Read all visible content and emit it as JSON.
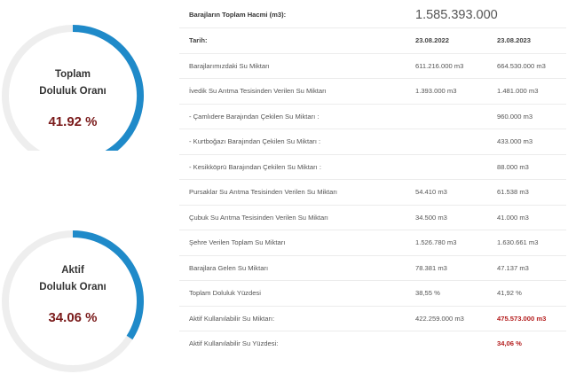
{
  "gauges": [
    {
      "label_line1": "Toplam",
      "label_line2": "Doluluk Oranı",
      "value_text": "41.92 %",
      "fraction": 0.4192
    },
    {
      "label_line1": "Aktif",
      "label_line2": "Doluluk Oranı",
      "value_text": "34.06 %",
      "fraction": 0.3406
    }
  ],
  "colors": {
    "gauge_fill": "#1f8ac9",
    "gauge_track": "#eeeeee",
    "value_text": "#7a1a1a",
    "highlight": "#b31b1b"
  },
  "table": {
    "total_volume_label": "Barajların Toplam Hacmi (m3):",
    "total_volume_value": "1.585.393.000",
    "date_label": "Tarih:",
    "date_1": "23.08.2022",
    "date_2": "23.08.2023",
    "rows": [
      {
        "label": "Barajlarımızdaki Su Miktarı",
        "v1": "611.216.000 m3",
        "v2": "664.530.000 m3"
      },
      {
        "label": "İvedik Su Arıtma Tesisinden Verilen Su Miktarı",
        "v1": "1.393.000 m3",
        "v2": "1.481.000 m3"
      },
      {
        "label": "- Çamlıdere Barajından Çekilen Su Miktarı :",
        "v1": "",
        "v2": "960.000 m3"
      },
      {
        "label": "- Kurtboğazı Barajından Çekilen Su Miktarı :",
        "v1": "",
        "v2": "433.000 m3"
      },
      {
        "label": "- Kesikköprü Barajından Çekilen Su Miktarı :",
        "v1": "",
        "v2": "88.000 m3"
      },
      {
        "label": "Pursaklar Su Arıtma Tesisinden Verilen Su Miktarı",
        "v1": "54.410 m3",
        "v2": "61.538 m3"
      },
      {
        "label": "Çubuk Su Arıtma Tesisinden Verilen Su Miktarı",
        "v1": "34.500 m3",
        "v2": "41.000 m3"
      },
      {
        "label": "Şehre Verilen Toplam Su Miktarı",
        "v1": "1.526.780 m3",
        "v2": "1.630.661 m3"
      },
      {
        "label": "Barajlara Gelen Su Miktarı",
        "v1": "78.381 m3",
        "v2": "47.137 m3"
      },
      {
        "label": "Toplam Doluluk Yüzdesi",
        "v1": "38,55 %",
        "v2": "41,92 %"
      },
      {
        "label": "Aktif Kullanılabilir Su Miktarı:",
        "v1": "422.259.000 m3",
        "v2": "475.573.000 m3",
        "v2_highlight": true
      },
      {
        "label": "Aktif Kullanılabilir Su Yüzdesi:",
        "v1": "",
        "v2": "34,06 %",
        "v2_highlight": true
      }
    ]
  }
}
